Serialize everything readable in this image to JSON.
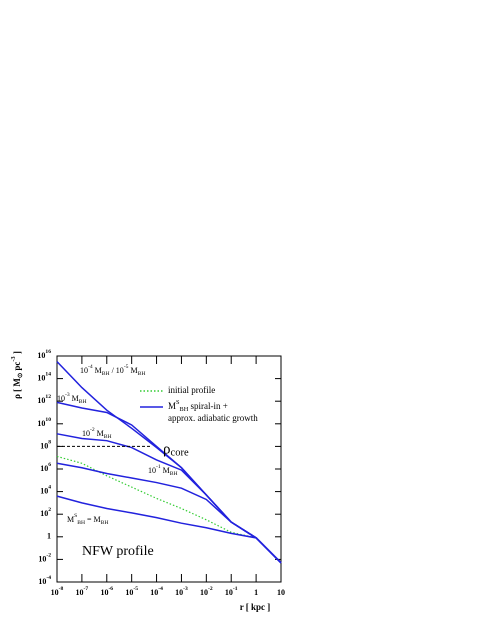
{
  "chart_data": {
    "type": "line",
    "xlabel": "r [ kpc ]",
    "ylabel": "ρ [ M_{⊙} pc^{-3} ]",
    "xscale": "log",
    "yscale": "log",
    "xlim": [
      1e-08,
      10
    ],
    "ylim": [
      0.0001,
      1e+16
    ],
    "xticks": [
      {
        "value": 1e-08,
        "label": "10^{-8}"
      },
      {
        "value": 1e-07,
        "label": "10^{-7}"
      },
      {
        "value": 1e-06,
        "label": "10^{-6}"
      },
      {
        "value": 1e-05,
        "label": "10^{-5}"
      },
      {
        "value": 0.0001,
        "label": "10^{-4}"
      },
      {
        "value": 0.001,
        "label": "10^{-3}"
      },
      {
        "value": 0.01,
        "label": "10^{-2}"
      },
      {
        "value": 0.1,
        "label": "10^{-1}"
      },
      1,
      10
    ],
    "yticks": [
      {
        "value": 1e+16,
        "label": "10^{16}"
      },
      {
        "value": 100000000000000.0,
        "label": "10^{14}"
      },
      {
        "value": 1000000000000.0,
        "label": "10^{12}"
      },
      {
        "value": 10000000000.0,
        "label": "10^{10}"
      },
      {
        "value": 100000000.0,
        "label": "10^{8}"
      },
      {
        "value": 1000000.0,
        "label": "10^{6}"
      },
      {
        "value": 10000.0,
        "label": "10^{4}"
      },
      {
        "value": 100,
        "label": "10^{2}"
      },
      1,
      {
        "value": 0.01,
        "label": "10^{-2}"
      },
      {
        "value": 0.0001,
        "label": "10^{-4}"
      }
    ],
    "x": [
      1e-08,
      1e-07,
      1e-06,
      1e-05,
      0.0001,
      0.001,
      0.01,
      0.1,
      1,
      10
    ],
    "series": [
      {
        "name": "initial profile",
        "color": "#33cc33",
        "style": "dotted",
        "values": [
          13000000.0,
          3200000.0,
          250000.0,
          25000.0,
          2500,
          320,
          32,
          2.5,
          0.8,
          0.005
        ]
      },
      {
        "name": "M^{S}_{BH} spiral-in +\napprox. adiabatic growth",
        "color": "#2222dd",
        "style": "solid",
        "values": [
          4000,
          1000,
          320,
          130,
          50,
          16,
          6.3,
          2,
          0.8,
          0.005
        ]
      },
      {
        "color": "#2222dd",
        "style": "solid",
        "values": [
          3200000.0,
          1300000.0,
          400000.0,
          160000.0,
          63000.0,
          20000.0,
          2000,
          20,
          0.8,
          0.005
        ]
      },
      {
        "color": "#2222dd",
        "style": "solid",
        "values": [
          1300000000.0,
          500000000.0,
          320000000.0,
          79000000.0,
          6300000.0,
          800000.0,
          5000,
          20,
          0.8,
          0.005
        ]
      },
      {
        "color": "#2222dd",
        "style": "solid",
        "values": [
          790000000000.0,
          250000000000.0,
          100000000000.0,
          7900000000.0,
          100000000.0,
          1300000.0,
          5000,
          20,
          0.8,
          0.005
        ]
      },
      {
        "color": "#2222dd",
        "style": "solid",
        "values": [
          3200000000000000.0,
          16000000000000.0,
          160000000000.0,
          4000000000.0,
          80000000.0,
          1300000.0,
          5000,
          20,
          0.8,
          0.005
        ]
      }
    ],
    "reference_line": {
      "label": "ρ_{core}",
      "y": 100000000.0,
      "x": [
        1e-08,
        6e-05
      ]
    },
    "annotations": [
      "10^{-4} M_{BH} / 10^{-5} M_{BH}",
      "10^{-3} M_{BH}",
      "10^{-2} M_{BH}",
      "10^{-1} M_{BH}",
      "M^{S}_{BH} = M_{BH}",
      "NFW profile"
    ]
  }
}
